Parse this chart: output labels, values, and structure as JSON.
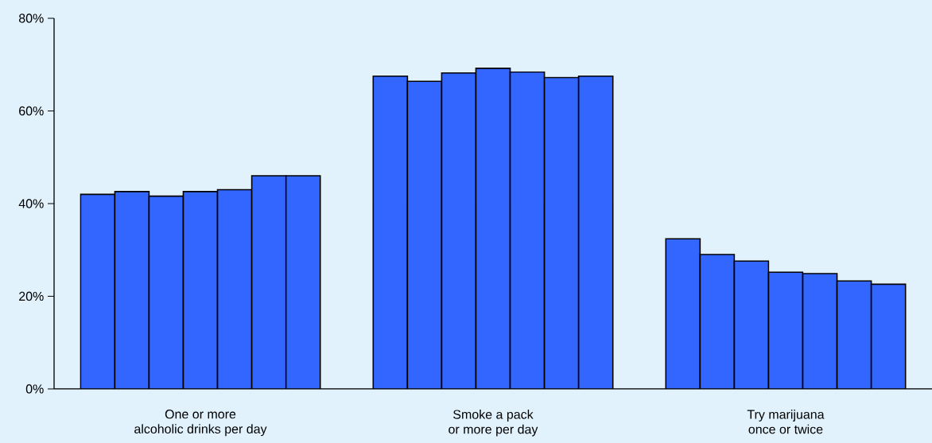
{
  "chart_data": {
    "type": "bar",
    "categories": [
      "One or more\nalcoholic drinks per day",
      "Smoke a pack\nor more per day",
      "Try marijuana\nonce or twice"
    ],
    "series": [
      {
        "color": "#3366ff",
        "values": [
          42.0,
          67.5,
          32.4
        ]
      },
      {
        "color": "#3366ff",
        "values": [
          42.6,
          66.4,
          29.0
        ]
      },
      {
        "color": "#3366ff",
        "values": [
          41.6,
          68.2,
          27.6
        ]
      },
      {
        "color": "#3366ff",
        "values": [
          42.6,
          69.2,
          25.2
        ]
      },
      {
        "color": "#3366ff",
        "values": [
          43.0,
          68.4,
          24.9
        ]
      },
      {
        "color": "#3366ff",
        "values": [
          46.0,
          67.2,
          23.3
        ]
      },
      {
        "color": "#3366ff",
        "values": [
          46.0,
          67.5,
          22.6
        ]
      }
    ],
    "ylim": [
      0,
      80
    ],
    "yticks": [
      {
        "value": 0,
        "label": "0%"
      },
      {
        "value": 20,
        "label": "20%"
      },
      {
        "value": 40,
        "label": "40%"
      },
      {
        "value": 60,
        "label": "60%"
      },
      {
        "value": 80,
        "label": "80%"
      }
    ],
    "grid": false
  }
}
